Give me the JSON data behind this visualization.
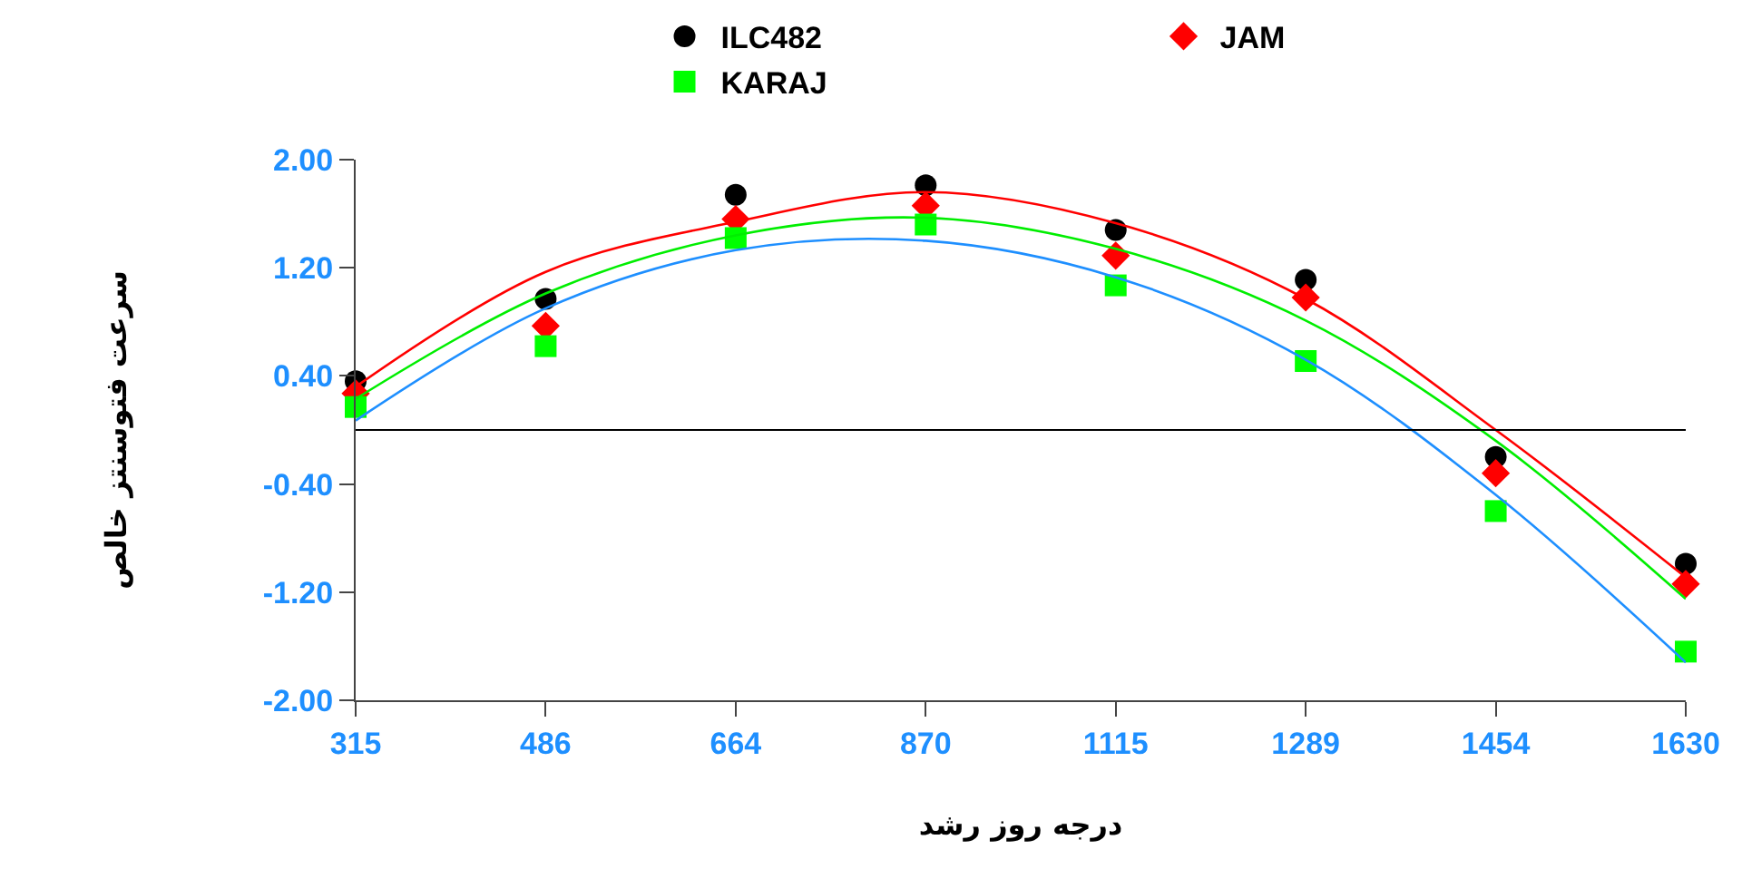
{
  "chart_data": {
    "type": "scatter",
    "xlabel": "درجه روز رشد",
    "ylabel": "سرعت فتوسنتز خالص",
    "categories": [
      "315",
      "486",
      "664",
      "870",
      "1115",
      "1289",
      "1454",
      "1630"
    ],
    "series": [
      {
        "name": "ILC482",
        "color": "#000000",
        "marker": "circle",
        "values": [
          0.36,
          0.97,
          1.74,
          1.81,
          1.48,
          1.11,
          -0.2,
          -0.99
        ]
      },
      {
        "name": "JAM",
        "color": "#ff0000",
        "marker": "diamond",
        "values": [
          0.27,
          0.77,
          1.56,
          1.66,
          1.29,
          0.98,
          -0.32,
          -1.14
        ]
      },
      {
        "name": "KARAJ",
        "color": "#00ff00",
        "marker": "square",
        "values": [
          0.17,
          0.62,
          1.42,
          1.52,
          1.07,
          0.51,
          -0.6,
          -1.64
        ]
      },
      {
        "type": "line",
        "color": "#ff0000",
        "marker": "none",
        "values": [
          0.32,
          1.17,
          1.54,
          1.76,
          1.53,
          0.97,
          0.0,
          -1.09
        ]
      },
      {
        "type": "line",
        "color": "#00ee00",
        "marker": "none",
        "values": [
          0.23,
          1.01,
          1.44,
          1.57,
          1.34,
          0.81,
          -0.08,
          -1.25
        ]
      },
      {
        "type": "line",
        "color": "#1e8fff",
        "marker": "none",
        "values": [
          0.07,
          0.9,
          1.33,
          1.4,
          1.13,
          0.52,
          -0.48,
          -1.72
        ]
      }
    ],
    "ylim": [
      -2.0,
      2.0
    ],
    "yticks": [
      {
        "value": -2.0,
        "label": "-2.00"
      },
      {
        "value": -1.2,
        "label": "-1.20"
      },
      {
        "value": -0.4,
        "label": "-0.40"
      },
      {
        "value": 0.4,
        "label": "0.40"
      },
      {
        "value": 1.2,
        "label": "1.20"
      },
      {
        "value": 2.0,
        "label": "2.00"
      }
    ],
    "ref_lines": [
      {
        "axis": "y",
        "value": 0,
        "color": "#000000",
        "line_style": "solid"
      }
    ],
    "legend": "top"
  }
}
